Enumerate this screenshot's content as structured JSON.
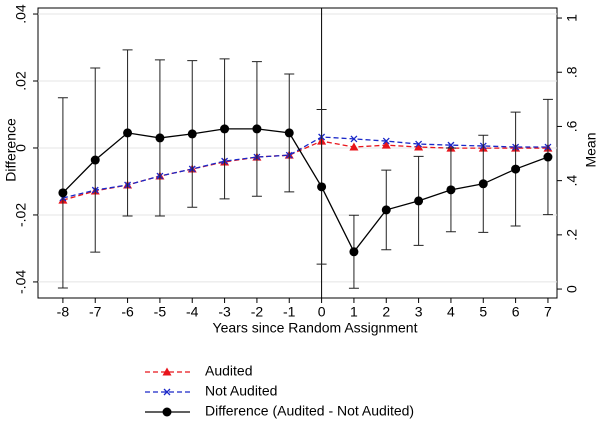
{
  "chart_data": {
    "type": "line",
    "x_label": "Years since Random Assignment",
    "y_label": "Difference",
    "y2_label": "Mean",
    "x": [
      -8,
      -7,
      -6,
      -5,
      -4,
      -3,
      -2,
      -1,
      0,
      1,
      2,
      3,
      4,
      5,
      6,
      7
    ],
    "xlim": [
      -8.77,
      7.28
    ],
    "xticks": [
      -8,
      -7,
      -6,
      -5,
      -4,
      -3,
      -2,
      -1,
      0,
      1,
      2,
      3,
      4,
      5,
      6,
      7
    ],
    "ylim": [
      -0.0448,
      0.0418
    ],
    "yticks": [
      {
        "value": -0.04,
        "label": "-.04"
      },
      {
        "value": -0.02,
        "label": "-.02"
      },
      0,
      {
        "value": 0.02,
        "label": ".02"
      },
      {
        "value": 0.04,
        "label": ".04"
      }
    ],
    "y2lim": [
      -0.033,
      1.037
    ],
    "y2ticks": [
      0,
      {
        "value": 0.2,
        "label": ".2"
      },
      {
        "value": 0.4,
        "label": ".4"
      },
      {
        "value": 0.6,
        "label": ".6"
      },
      {
        "value": 0.8,
        "label": ".8"
      },
      1
    ],
    "grid": true,
    "vline": 0,
    "series": [
      {
        "name": "Audited",
        "color": "#e8141b",
        "axis": "y2",
        "marker": "triangle",
        "dash": true,
        "values": [
          0.328,
          0.362,
          0.384,
          0.417,
          0.443,
          0.469,
          0.487,
          0.494,
          0.546,
          0.524,
          0.531,
          0.524,
          0.52,
          0.52,
          0.52,
          0.52
        ]
      },
      {
        "name": "Not Audited",
        "color": "#1a28c8",
        "axis": "y2",
        "marker": "x",
        "dash": true,
        "values": [
          0.336,
          0.365,
          0.384,
          0.417,
          0.443,
          0.472,
          0.487,
          0.494,
          0.561,
          0.554,
          0.546,
          0.535,
          0.531,
          0.528,
          0.524,
          0.524
        ]
      },
      {
        "name": "Difference (Audited - Not Audited)",
        "color": "#000000",
        "marker": "circle",
        "dash": false,
        "values": [
          -0.0134,
          -0.0036,
          0.0045,
          0.003,
          0.0042,
          0.0057,
          0.0057,
          0.0045,
          -0.0116,
          -0.031,
          -0.0185,
          -0.0158,
          -0.0125,
          -0.0107,
          -0.0063,
          -0.0027
        ],
        "errors": [
          0.0284,
          0.0275,
          0.0248,
          0.0233,
          0.0219,
          0.0209,
          0.0201,
          0.0176,
          0.0231,
          0.0109,
          0.0119,
          0.0133,
          0.0125,
          0.0145,
          0.017,
          0.0172
        ]
      }
    ]
  }
}
